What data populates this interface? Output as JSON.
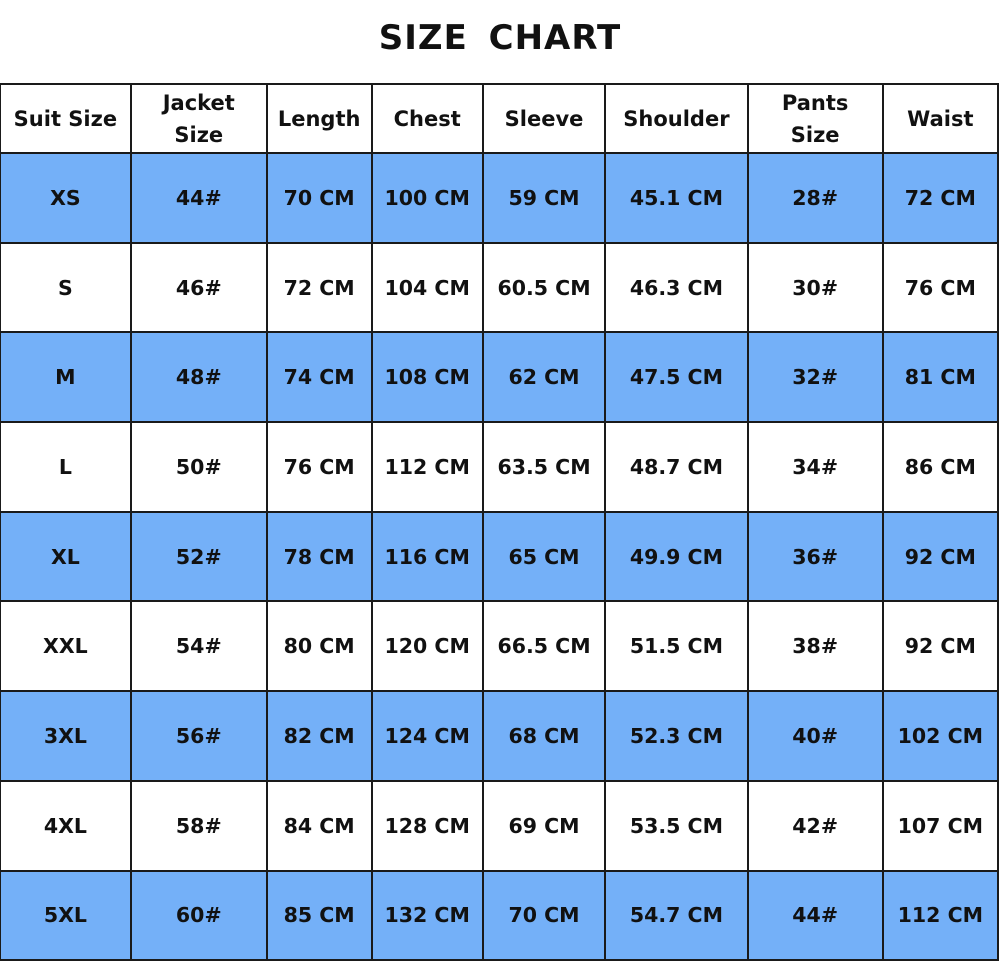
{
  "title": "SIZE  CHART",
  "colors": {
    "row_highlight": "#74b0f8",
    "row_plain": "#ffffff",
    "border": "#1a1a1a"
  },
  "headers": [
    "Suit Size",
    "Jacket Size",
    "Length",
    "Chest",
    "Sleeve",
    "Shoulder",
    "Pants Size",
    "Waist"
  ],
  "rows": [
    [
      "XS",
      "44#",
      "70 CM",
      "100 CM",
      "59 CM",
      "45.1 CM",
      "28#",
      "72 CM"
    ],
    [
      "S",
      "46#",
      "72 CM",
      "104 CM",
      "60.5 CM",
      "46.3 CM",
      "30#",
      "76 CM"
    ],
    [
      "M",
      "48#",
      "74 CM",
      "108 CM",
      "62 CM",
      "47.5 CM",
      "32#",
      "81 CM"
    ],
    [
      "L",
      "50#",
      "76 CM",
      "112 CM",
      "63.5 CM",
      "48.7 CM",
      "34#",
      "86 CM"
    ],
    [
      "XL",
      "52#",
      "78 CM",
      "116 CM",
      "65 CM",
      "49.9 CM",
      "36#",
      "92 CM"
    ],
    [
      "XXL",
      "54#",
      "80 CM",
      "120 CM",
      "66.5 CM",
      "51.5 CM",
      "38#",
      "92 CM"
    ],
    [
      "3XL",
      "56#",
      "82 CM",
      "124 CM",
      "68 CM",
      "52.3 CM",
      "40#",
      "102 CM"
    ],
    [
      "4XL",
      "58#",
      "84 CM",
      "128 CM",
      "69 CM",
      "53.5 CM",
      "42#",
      "107 CM"
    ],
    [
      "5XL",
      "60#",
      "85 CM",
      "132 CM",
      "70 CM",
      "54.7 CM",
      "44#",
      "112 CM"
    ]
  ]
}
